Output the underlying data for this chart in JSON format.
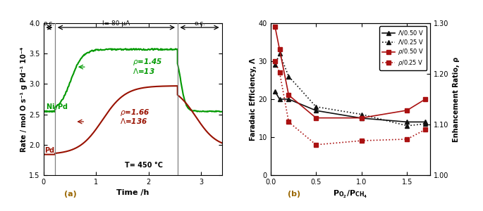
{
  "panel_a": {
    "ylabel": "Rate / mol O s⁻¹ g Pd⁻¹ 10⁻⁴",
    "xlabel": "Time /h",
    "ylim": [
      1.5,
      4.0
    ],
    "xlim": [
      0,
      3.4
    ],
    "yticks": [
      1.5,
      2.0,
      2.5,
      3.0,
      3.5,
      4.0
    ],
    "xticks": [
      0,
      1,
      2,
      3
    ],
    "vlines": [
      0.22,
      2.55
    ],
    "green_color": "#009900",
    "red_color": "#991100",
    "green_baseline": 2.55,
    "green_plateau": 3.57,
    "green_final": 2.55,
    "red_baseline": 1.84,
    "red_peak": 2.97,
    "red_final": 1.95
  },
  "panel_b": {
    "ylabel_left": "Faradaic Efficiency, Λ",
    "ylabel_right": "Enhancement Ratio, ρ",
    "ylim_left": [
      0,
      40
    ],
    "ylim_right": [
      1.0,
      1.3
    ],
    "xlim": [
      0,
      1.75
    ],
    "xticks": [
      0.0,
      0.5,
      1.0,
      1.5
    ],
    "yticks_left": [
      0,
      10,
      20,
      30,
      40
    ],
    "yticks_right": [
      1.0,
      1.1,
      1.2,
      1.3
    ],
    "x_data": [
      0.05,
      0.1,
      0.2,
      0.5,
      1.0,
      1.5,
      1.7
    ],
    "y_lambda_050": [
      22,
      20,
      20,
      17,
      15,
      14,
      14
    ],
    "y_lambda_025": [
      29,
      32,
      26,
      18,
      16,
      13,
      13.5
    ],
    "y_rho_050": [
      1.293,
      1.248,
      1.158,
      1.113,
      1.113,
      1.128,
      1.15
    ],
    "y_rho_025": [
      1.225,
      1.203,
      1.105,
      1.06,
      1.068,
      1.071,
      1.09
    ],
    "black_color": "#111111",
    "red_color": "#aa1111"
  }
}
